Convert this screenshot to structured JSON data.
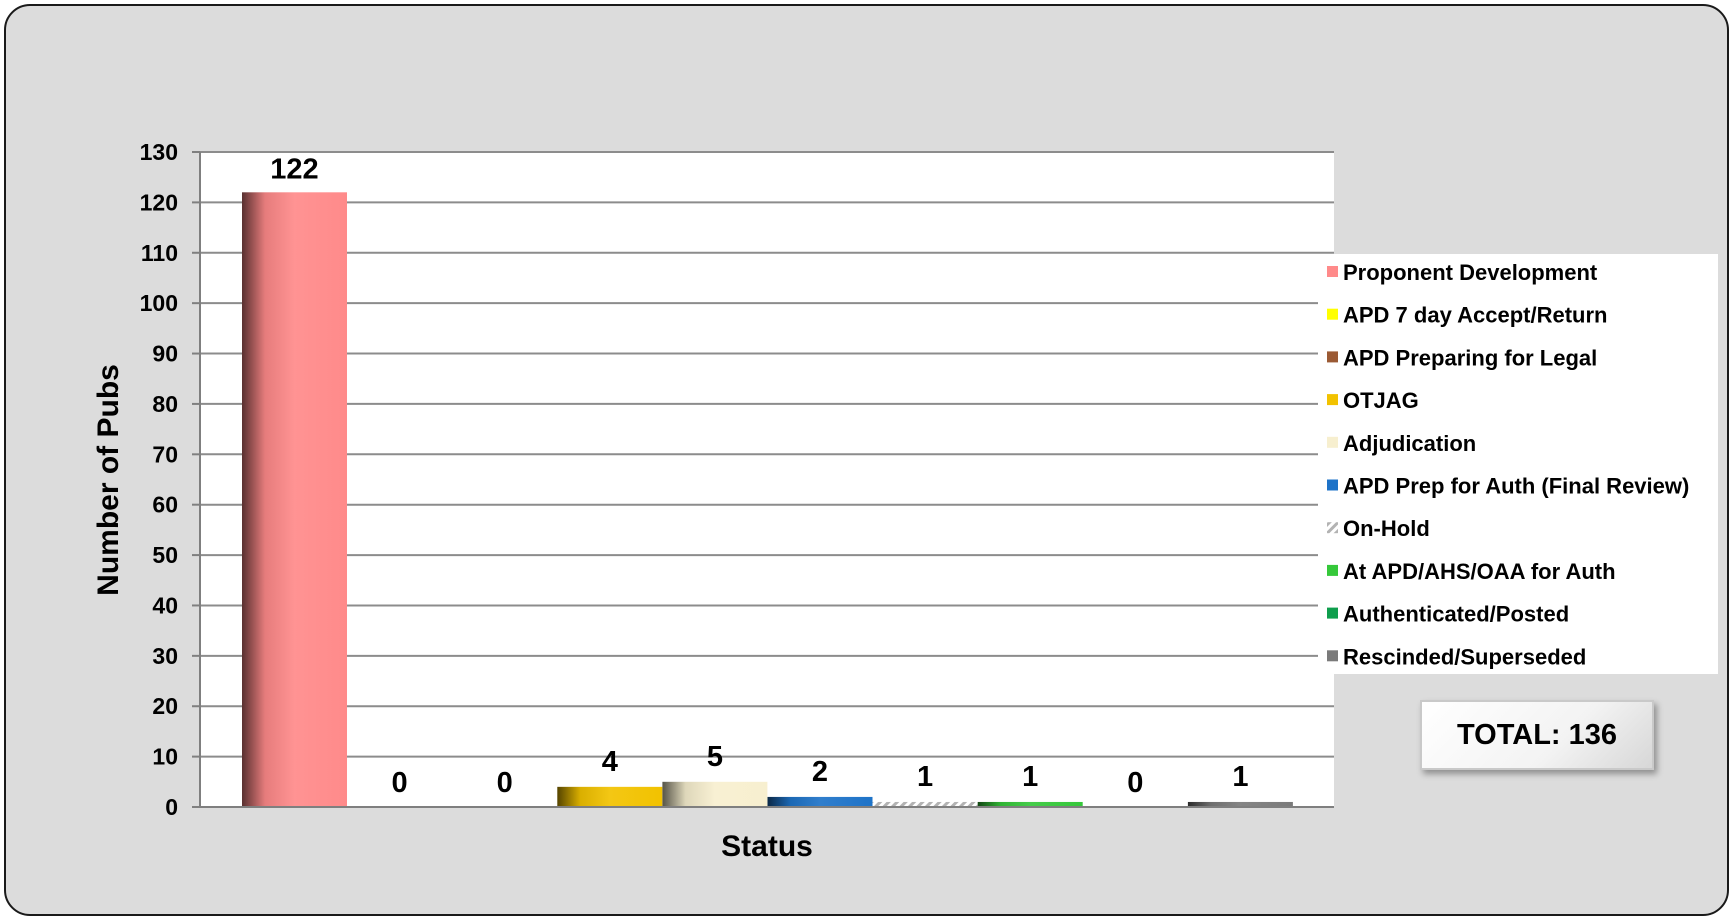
{
  "chart_data": {
    "type": "bar",
    "ylabel": "Number of Pubs",
    "xlabel": "Status",
    "ylim": [
      0,
      130
    ],
    "yticks": [
      0,
      10,
      20,
      30,
      40,
      50,
      60,
      70,
      80,
      90,
      100,
      110,
      120,
      130
    ],
    "grid": true,
    "legend_position": "right",
    "series": [
      {
        "name": "Proponent Development",
        "values": [
          122
        ],
        "color": "#ff8a8a"
      },
      {
        "name": "APD 7 day Accept/Return",
        "values": [
          0
        ],
        "color": "#ffff00"
      },
      {
        "name": "APD Preparing for Legal",
        "values": [
          0
        ],
        "color": "#9b5a34"
      },
      {
        "name": "OTJAG",
        "values": [
          4
        ],
        "color": "#f2c200"
      },
      {
        "name": "Adjudication",
        "values": [
          5
        ],
        "color": "#f7efcf"
      },
      {
        "name": "APD Prep for Auth (Final Review)",
        "values": [
          2
        ],
        "color": "#1e73c8"
      },
      {
        "name": "On-Hold",
        "values": [
          1
        ],
        "color": "#c8c8c8"
      },
      {
        "name": "At APD/AHS/OAA for Auth",
        "values": [
          1
        ],
        "color": "#35c83a"
      },
      {
        "name": "Authenticated/Posted",
        "values": [
          0
        ],
        "color": "#0f9e4d"
      },
      {
        "name": "Rescinded/Superseded",
        "values": [
          1
        ],
        "color": "#7a7a7a"
      }
    ],
    "data_labels": [
      "122",
      "0",
      "0",
      "4",
      "5",
      "2",
      "1",
      "1",
      "0",
      "1"
    ]
  },
  "total": {
    "text": "TOTAL: 136"
  }
}
